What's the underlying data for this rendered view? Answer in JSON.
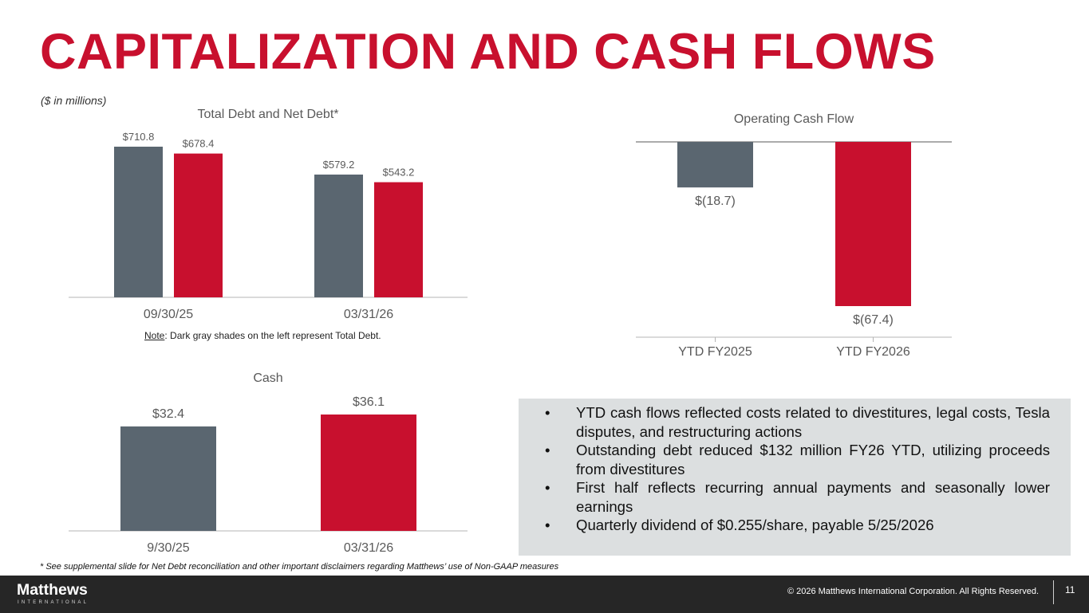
{
  "page": {
    "title": "CAPITALIZATION AND CASH FLOWS",
    "units_note": "($ in millions)",
    "debt_note_label": "Note",
    "debt_note_text": ": Dark gray shades on the left represent Total Debt.",
    "footnote": "* See supplemental slide for Net Debt reconciliation and other important disclaimers regarding Matthews’ use of Non-GAAP measures"
  },
  "colors": {
    "accent_red": "#c8102e",
    "dark_gray": "#5a6670",
    "panel_gray": "#dcdfe0",
    "footer_bg": "#262626"
  },
  "chart_data": [
    {
      "type": "bar",
      "title": "Total Debt and Net Debt*",
      "categories": [
        "09/30/25",
        "03/31/26"
      ],
      "series": [
        {
          "values": [
            710.8,
            579.2
          ],
          "labels": [
            "$710.8",
            "$579.2"
          ]
        },
        {
          "values": [
            678.4,
            543.2
          ],
          "labels": [
            "$678.4",
            "$543.2"
          ]
        }
      ],
      "ylim": [
        0,
        710.8
      ],
      "grid": false,
      "legend": "none"
    },
    {
      "type": "bar",
      "title": "Operating Cash Flow",
      "categories": [
        "YTD FY2025",
        "YTD FY2026"
      ],
      "series": [
        {
          "values": [
            -18.7,
            -67.4
          ],
          "labels": [
            "$(18.7)",
            "$(67.4)"
          ]
        }
      ],
      "ylim": [
        -67.4,
        0
      ],
      "grid": false,
      "legend": "none"
    },
    {
      "type": "bar",
      "title": "Cash",
      "categories": [
        "9/30/25",
        "03/31/26"
      ],
      "series": [
        {
          "values": [
            32.4,
            36.1
          ],
          "labels": [
            "$32.4",
            "$36.1"
          ]
        }
      ],
      "ylim": [
        0,
        36.1
      ],
      "grid": false,
      "legend": "none"
    }
  ],
  "bullets": [
    "YTD cash flows reflected costs related to divestitures, legal costs, Tesla disputes, and restructuring actions",
    "Outstanding debt reduced $132 million FY26 YTD, utilizing proceeds from divestitures",
    "First half reflects recurring annual payments and seasonally lower earnings",
    "Quarterly dividend of $0.255/share, payable 5/25/2026"
  ],
  "footer": {
    "logo_main": "Matthews",
    "logo_sub": "INTERNATIONAL",
    "copyright": "© 2026 Matthews International Corporation. All Rights Reserved.",
    "page_number": "11"
  }
}
